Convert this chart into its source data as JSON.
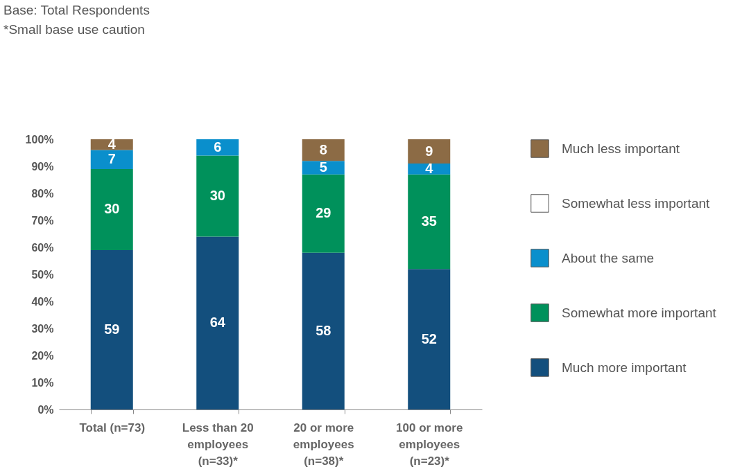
{
  "chart_data": {
    "type": "bar",
    "stacked": true,
    "annotations": [
      "Base: Total Respondents",
      "*Small base use caution"
    ],
    "categories": [
      "Total (n=73)",
      "Less than 20 employees (n=33)*",
      "20 or more employees (n=38)*",
      "100 or more employees (n=23)*"
    ],
    "series": [
      {
        "name": "Much more important",
        "color": "#134f7d",
        "values": [
          59,
          64,
          58,
          52
        ]
      },
      {
        "name": "Somewhat more important",
        "color": "#00915b",
        "values": [
          30,
          30,
          29,
          35
        ]
      },
      {
        "name": "About the same",
        "color": "#0a8fcc",
        "values": [
          7,
          6,
          5,
          4
        ]
      },
      {
        "name": "Somewhat less important",
        "color": "#ffffff",
        "values": [
          null,
          null,
          null,
          null
        ]
      },
      {
        "name": "Much less important",
        "color": "#8c6b45",
        "values": [
          4,
          null,
          8,
          9
        ]
      }
    ],
    "ylim": [
      0,
      100
    ],
    "yticks": [
      {
        "value": 0,
        "label": "0%"
      },
      {
        "value": 10,
        "label": "10%"
      },
      {
        "value": 20,
        "label": "20%"
      },
      {
        "value": 30,
        "label": "30%"
      },
      {
        "value": 40,
        "label": "40%"
      },
      {
        "value": 50,
        "label": "50%"
      },
      {
        "value": 60,
        "label": "60%"
      },
      {
        "value": 70,
        "label": "70%"
      },
      {
        "value": 80,
        "label": "80%"
      },
      {
        "value": 90,
        "label": "90%"
      },
      {
        "value": 100,
        "label": "100%"
      }
    ],
    "grid": false,
    "legend": "top right",
    "data_labels": true
  }
}
